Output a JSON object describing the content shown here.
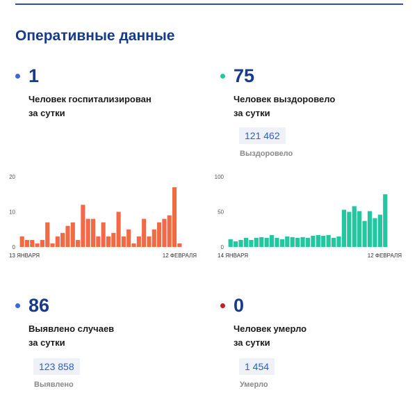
{
  "header": {
    "title": "Оперативные данные"
  },
  "stats": {
    "hospitalized": {
      "value": "1",
      "line1": "Человек госпитализирован",
      "line2": "за сутки",
      "dot_color": "#3a68d8"
    },
    "recovered": {
      "value": "75",
      "line1": "Человек выздоровело",
      "line2": "за сутки",
      "dot_color": "#22c7a0",
      "total": "121 462",
      "total_label": "Выздоровело"
    },
    "detected": {
      "value": "86",
      "line1": "Выявлено случаев",
      "line2": "за сутки",
      "dot_color": "#3a68d8",
      "total": "123 858",
      "total_label": "Выявлено"
    },
    "deaths": {
      "value": "0",
      "line1": "Человек умерло",
      "line2": "за сутки",
      "dot_color": "#c21f2a",
      "total": "1 454",
      "total_label": "Умерло"
    }
  },
  "chart_data": [
    {
      "type": "bar",
      "title": "",
      "color": "#f26a45",
      "ylim": [
        0,
        20
      ],
      "yticks": [
        "0",
        "10",
        "20"
      ],
      "x_start_label": "13 ЯНВАРЯ",
      "x_end_label": "12 ФЕВРАЛЯ",
      "values": [
        3,
        2,
        2,
        1,
        2,
        7,
        1,
        3,
        4,
        6,
        7,
        2,
        12,
        8,
        8,
        3,
        7,
        3,
        4,
        10,
        3,
        5,
        1,
        3,
        8,
        3,
        5,
        7,
        8,
        9,
        17,
        1
      ]
    },
    {
      "type": "bar",
      "title": "",
      "color": "#22c7a0",
      "ylim": [
        0,
        100
      ],
      "yticks": [
        "0",
        "50",
        "100"
      ],
      "x_start_label": "14 ЯНВАРЯ",
      "x_end_label": "12 ФЕВРАЛЯ",
      "values": [
        11,
        8,
        10,
        13,
        10,
        13,
        14,
        13,
        17,
        13,
        11,
        15,
        14,
        13,
        14,
        13,
        16,
        17,
        16,
        17,
        13,
        15,
        53,
        50,
        58,
        51,
        37,
        51,
        41,
        46,
        75
      ]
    }
  ]
}
